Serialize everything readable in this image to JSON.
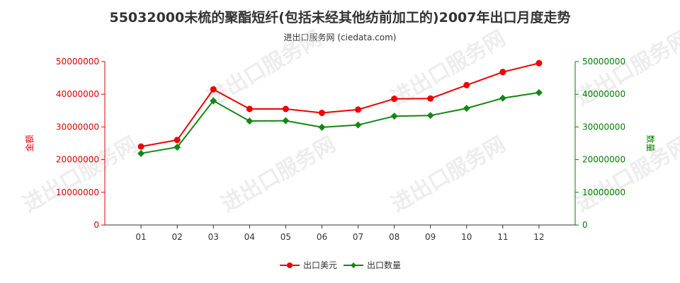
{
  "colors": {
    "left_axis": "#dd0000",
    "right_axis": "#008000",
    "axis_line": "#333333",
    "grid": "#e6e6e6",
    "series_value": "#ee0000",
    "series_quantity": "#118811"
  },
  "chart_data": {
    "type": "line",
    "title": "55032000未梳的聚酯短纤(包括未经其他纺前加工的)2007年出口月度走势",
    "subtitle": "进出口服务网 (ciedata.com)",
    "categories": [
      "01",
      "02",
      "03",
      "04",
      "05",
      "06",
      "07",
      "08",
      "09",
      "10",
      "11",
      "12"
    ],
    "y_left_label": "金额",
    "y_right_label": "数量",
    "ylim_left": [
      0,
      50000000
    ],
    "ylim_right": [
      0,
      50000000
    ],
    "y_ticks_left": [
      "0",
      "10000000",
      "20000000",
      "30000000",
      "40000000",
      "50000000"
    ],
    "y_ticks_right": [
      "0",
      "10000000",
      "20000000",
      "30000000",
      "40000000",
      "50000000"
    ],
    "grid": false,
    "legend_position": "bottom-center",
    "watermark": "进出口服务网",
    "series": [
      {
        "name": "出口美元",
        "axis": "left",
        "marker": "circle",
        "values": [
          24000000,
          26000000,
          41500000,
          35500000,
          35500000,
          34300000,
          35300000,
          38600000,
          38700000,
          42800000,
          46800000,
          49500000
        ]
      },
      {
        "name": "出口数量",
        "axis": "right",
        "marker": "diamond",
        "values": [
          21900000,
          23800000,
          38000000,
          31800000,
          31900000,
          29900000,
          30600000,
          33300000,
          33500000,
          35700000,
          38800000,
          40500000
        ]
      }
    ]
  }
}
